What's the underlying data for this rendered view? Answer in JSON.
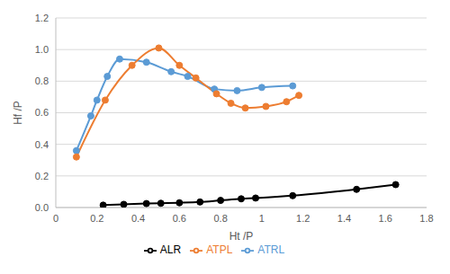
{
  "chart_data": {
    "type": "line",
    "x_label": "Ht /P",
    "y_label": "Hf /P",
    "xlim": [
      0,
      1.8
    ],
    "xticks": [
      {
        "value": 0,
        "label": "0"
      },
      0.2,
      0.4,
      0.6,
      0.8,
      {
        "value": 1,
        "label": "1"
      },
      1.2,
      1.4,
      1.6,
      1.8
    ],
    "ylim": [
      0,
      1.2
    ],
    "yticks": [
      {
        "value": 0,
        "label": "0.0"
      },
      0.2,
      0.4,
      0.6,
      0.8,
      {
        "value": 1,
        "label": "1.0"
      },
      1.2
    ],
    "grid": "y",
    "legend": "bottom",
    "line_style": "smooth",
    "marker": "circle",
    "series": [
      {
        "name": "ATRL",
        "color": "#5b9bd5",
        "x": [
          0.1,
          0.17,
          0.2,
          0.25,
          0.31,
          0.44,
          0.56,
          0.64,
          0.77,
          0.88,
          1.0,
          1.15
        ],
        "values": [
          0.36,
          0.58,
          0.68,
          0.83,
          0.94,
          0.92,
          0.86,
          0.83,
          0.75,
          0.74,
          0.76,
          0.77
        ]
      },
      {
        "name": "ATPL",
        "color": "#ed7d31",
        "x": [
          0.1,
          0.24,
          0.37,
          0.5,
          0.6,
          0.68,
          0.78,
          0.85,
          0.92,
          1.02,
          1.12,
          1.18
        ],
        "values": [
          0.32,
          0.68,
          0.9,
          1.01,
          0.9,
          0.82,
          0.72,
          0.66,
          0.63,
          0.64,
          0.67,
          0.71
        ]
      },
      {
        "name": "ALR",
        "color": "#000000",
        "x": [
          0.23,
          0.33,
          0.44,
          0.51,
          0.6,
          0.7,
          0.8,
          0.9,
          0.97,
          1.15,
          1.46,
          1.65
        ],
        "values": [
          0.015,
          0.02,
          0.025,
          0.027,
          0.03,
          0.035,
          0.045,
          0.055,
          0.06,
          0.075,
          0.115,
          0.145
        ]
      }
    ]
  }
}
